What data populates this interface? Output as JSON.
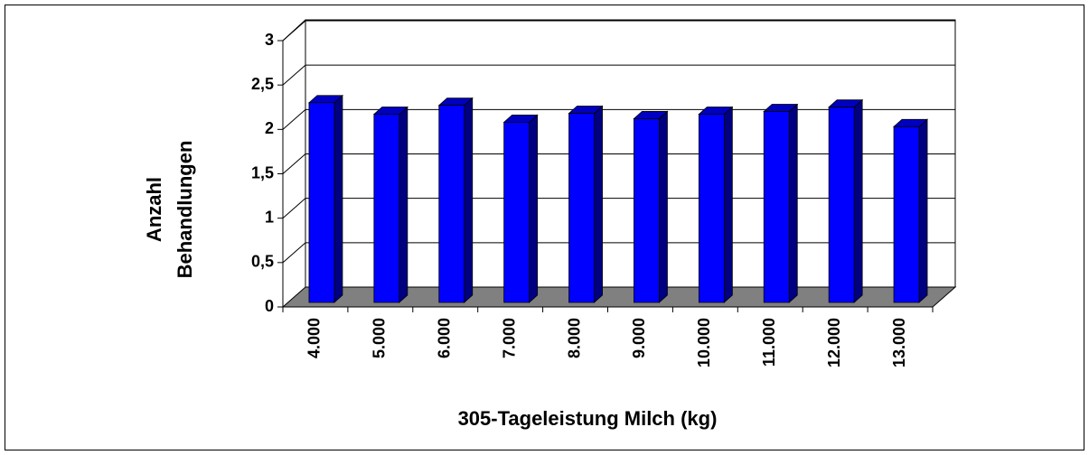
{
  "chart_data": {
    "type": "bar3d",
    "categories": [
      "4.000",
      "5.000",
      "6.000",
      "7.000",
      "8.000",
      "9.000",
      "10.000",
      "11.000",
      "12.000",
      "13.000"
    ],
    "values": [
      2.25,
      2.12,
      2.22,
      2.03,
      2.13,
      2.07,
      2.12,
      2.15,
      2.2,
      1.98
    ],
    "color": "#0000ff",
    "xlabel": "305-Tageleistung Milch (kg)",
    "ylabel": [
      "Anzahl",
      "Behandlungen"
    ],
    "ylim": [
      0,
      3
    ],
    "yticks": [
      0,
      {
        "value": 0.5,
        "label": "0,5"
      },
      1,
      {
        "value": 1.5,
        "label": "1,5"
      },
      2,
      {
        "value": 2.5,
        "label": "2,5"
      },
      3
    ],
    "grid": true
  }
}
